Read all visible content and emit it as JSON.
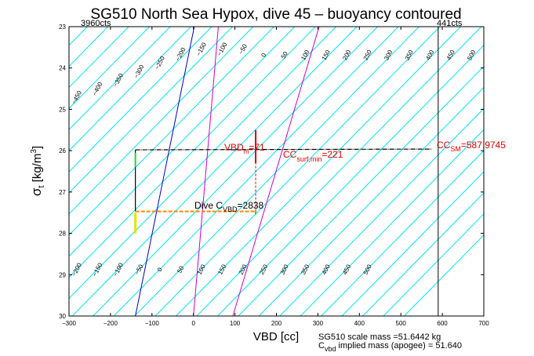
{
  "chart_data": {
    "type": "line",
    "title": "SG510 North Sea Hypox, dive 45 – buoyancy contoured",
    "xlabel": "VBD [cc]",
    "ylabel_main": "σ",
    "ylabel_sub": "t",
    "ylabel_unit": " [kg/m",
    "ylabel_sup": "3",
    "ylabel_close": "]",
    "xlim": [
      -300,
      700
    ],
    "ylim": [
      23,
      30
    ],
    "y_inverted": true,
    "xticks": [
      "−300",
      "−200",
      "−100",
      "0",
      "100",
      "200",
      "300",
      "400",
      "500",
      "600",
      "700"
    ],
    "xtick_values": [
      -300,
      -200,
      -100,
      0,
      100,
      200,
      300,
      400,
      500,
      600,
      700
    ],
    "yticks": [
      "23",
      "24",
      "25",
      "26",
      "27",
      "28",
      "29",
      "30"
    ],
    "ytick_values": [
      23,
      24,
      25,
      26,
      27,
      28,
      29,
      30
    ],
    "corner_left": "3960cts",
    "corner_right": "441cts",
    "iso_lines": {
      "slope_cc_per_sigma": 98.0,
      "step_cc": 50,
      "anchor_sigma": 26,
      "anchor_value0_x": 0,
      "range": [
        -500,
        500
      ],
      "color": "#00e5ee",
      "top_labels": [
        "−450",
        "−400",
        "−350",
        "−300",
        "−250",
        "−200",
        "−150",
        "−100",
        "−50",
        "0",
        "50",
        "100",
        "150",
        "200",
        "250",
        "300",
        "350",
        "400",
        "450",
        "500"
      ],
      "bottom_labels": [
        "−200",
        "−150",
        "−100",
        "−50",
        "0",
        "50",
        "100",
        "150",
        "200",
        "250",
        "300",
        "350",
        "400",
        "450",
        "500"
      ]
    },
    "highlight_lines": [
      {
        "x_at_top": 2,
        "x_at_bottom": -140,
        "color": "#0000cc"
      },
      {
        "x_at_top": 60,
        "x_at_bottom": 0,
        "color": "#cc00cc"
      },
      {
        "x_at_top": 303,
        "x_at_bottom": 95,
        "color": "#cc00cc"
      }
    ],
    "trace": {
      "surface_sigma": 25.98,
      "deep_sigma": 27.47,
      "x_left": -140,
      "x_mid": 150,
      "x_right": 575
    },
    "vertical_line_x": 590,
    "annotations": {
      "vbd_label": "VBD",
      "vbd_sub": "m",
      "vbd_value": "=71",
      "cc_surf_label": "CC",
      "cc_surf_sub": "surf,min",
      "cc_surf_value": "=221",
      "cc_sm_label": "CC",
      "cc_sm_sub": "SM",
      "cc_sm_value": "=587.9745",
      "dive_c_label": "Dive C",
      "dive_c_sub": "VBD",
      "dive_c_value": "=2838",
      "scale_mass": "SG510 scale mass =51.6442 kg",
      "implied_label": "C",
      "implied_sub": "vbd",
      "implied_value": " implied mass (apogee) = 51.640"
    },
    "colors": {
      "cyan": "#00e5ee",
      "blue": "#0000cc",
      "magenta": "#cc00cc",
      "red": "#dd0000",
      "orange": "#ff8800",
      "yellow": "#e6e600",
      "green": "#33cc33"
    }
  }
}
